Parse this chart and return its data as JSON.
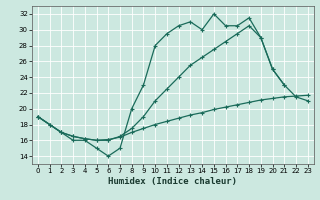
{
  "xlabel": "Humidex (Indice chaleur)",
  "background_color": "#cce8e0",
  "grid_color": "#ffffff",
  "line_color": "#1a6b5a",
  "xlim": [
    -0.5,
    23.5
  ],
  "ylim": [
    13,
    33
  ],
  "yticks": [
    14,
    16,
    18,
    20,
    22,
    24,
    26,
    28,
    30,
    32
  ],
  "xticks": [
    0,
    1,
    2,
    3,
    4,
    5,
    6,
    7,
    8,
    9,
    10,
    11,
    12,
    13,
    14,
    15,
    16,
    17,
    18,
    19,
    20,
    21,
    22,
    23
  ],
  "curve1_x": [
    0,
    1,
    2,
    3,
    4,
    5,
    6,
    7,
    8,
    9,
    10,
    11,
    12,
    13,
    14,
    15,
    16,
    17,
    18,
    19,
    20,
    21
  ],
  "curve1_y": [
    19,
    18,
    17,
    16,
    16,
    15,
    14,
    15,
    20,
    23,
    28,
    29.5,
    30.5,
    31,
    30,
    32,
    30.5,
    30.5,
    31.5,
    29,
    25,
    23
  ],
  "curve2_x": [
    0,
    2,
    3,
    4,
    5,
    6,
    7,
    8,
    9,
    10,
    11,
    12,
    13,
    14,
    15,
    16,
    17,
    18,
    19,
    20,
    21,
    22,
    23
  ],
  "curve2_y": [
    19,
    17,
    16.5,
    16.2,
    16.0,
    16.0,
    16.5,
    17.5,
    19,
    21,
    22.5,
    24,
    25.5,
    26.5,
    27.5,
    28.5,
    29.5,
    30.5,
    29,
    25,
    23,
    21.5,
    21
  ],
  "curve3_x": [
    0,
    1,
    2,
    3,
    4,
    5,
    6,
    7,
    8,
    9,
    10,
    11,
    12,
    13,
    14,
    15,
    16,
    17,
    18,
    19,
    20,
    21,
    22,
    23
  ],
  "curve3_y": [
    19,
    18,
    17,
    16.5,
    16.2,
    16.0,
    16.1,
    16.4,
    17.0,
    17.5,
    18.0,
    18.4,
    18.8,
    19.2,
    19.5,
    19.9,
    20.2,
    20.5,
    20.8,
    21.1,
    21.3,
    21.5,
    21.6,
    21.7
  ]
}
